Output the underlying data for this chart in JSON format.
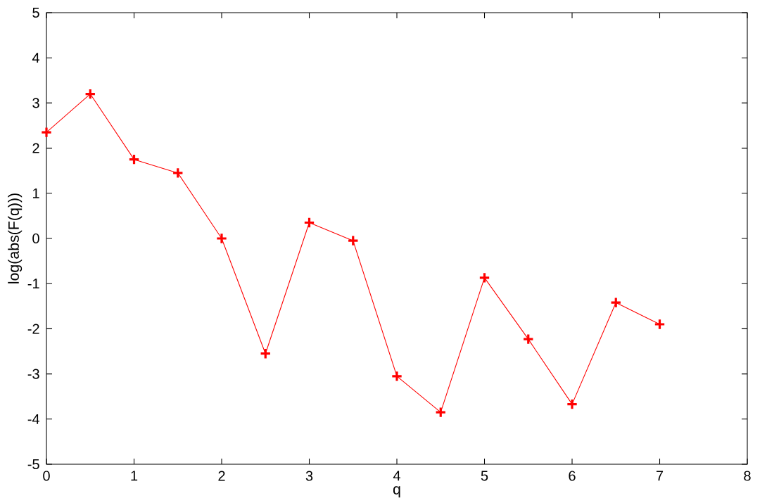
{
  "chart_data": {
    "type": "line",
    "xlabel": "q",
    "ylabel": "log(abs(F(q)))",
    "x": [
      0,
      0.5,
      1,
      1.5,
      2,
      2.5,
      3,
      3.5,
      4,
      4.5,
      5,
      5.5,
      6,
      6.5,
      7
    ],
    "series": [
      {
        "color": "#ff0000",
        "values": [
          2.35,
          3.2,
          1.75,
          1.45,
          0,
          -2.55,
          0.35,
          -0.05,
          -3.05,
          -3.85,
          -0.87,
          -2.23,
          -3.67,
          -1.42,
          -1.9
        ]
      }
    ],
    "xlim": [
      0,
      8
    ],
    "ylim": [
      -5,
      5
    ],
    "xticks": [
      0,
      1,
      2,
      3,
      4,
      5,
      6,
      7,
      8
    ],
    "yticks": [
      -5,
      -4,
      -3,
      -2,
      -1,
      0,
      1,
      2,
      3,
      4,
      5
    ],
    "marker": "cross",
    "line_style": "solid",
    "grid": false
  }
}
